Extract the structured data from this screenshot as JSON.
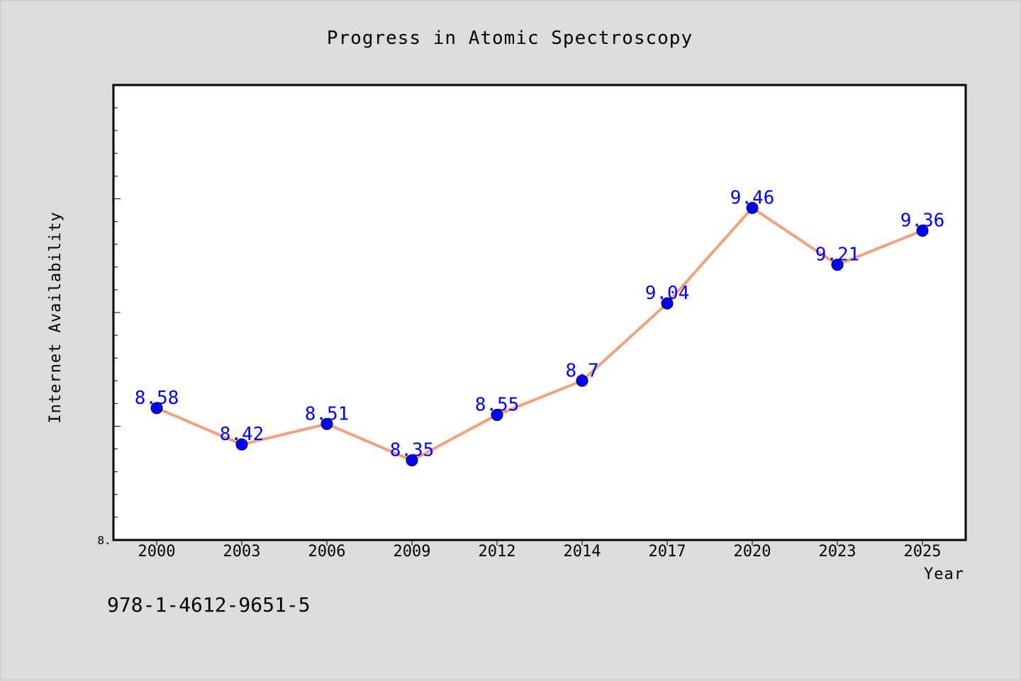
{
  "chart_data": {
    "type": "line",
    "title": "Progress in Atomic Spectroscopy",
    "xlabel": "Year",
    "ylabel": "Internet Availability",
    "categories": [
      "2000",
      "2003",
      "2006",
      "2009",
      "2012",
      "2014",
      "2017",
      "2020",
      "2023",
      "2025"
    ],
    "series": [
      {
        "values": [
          8.58,
          8.42,
          8.51,
          8.35,
          8.55,
          8.7,
          9.04,
          9.46,
          9.21,
          9.36
        ],
        "data_labels": [
          "8.58",
          "8.42",
          "8.51",
          "8.35",
          "8.55",
          "8.7",
          "9.04",
          "9.46",
          "9.21",
          "9.36"
        ],
        "line_color": "#f4a07a",
        "marker_color": "#0000ff"
      }
    ],
    "ylim": [
      8.0,
      10.0
    ],
    "y_tick_label": "8.",
    "grid": false,
    "legend": "none"
  },
  "footer_code": "978-1-4612-9651-5",
  "colors": {
    "background": "#dcdcdc",
    "plot_background": "#ffffff",
    "label_color": "#0000ff"
  }
}
